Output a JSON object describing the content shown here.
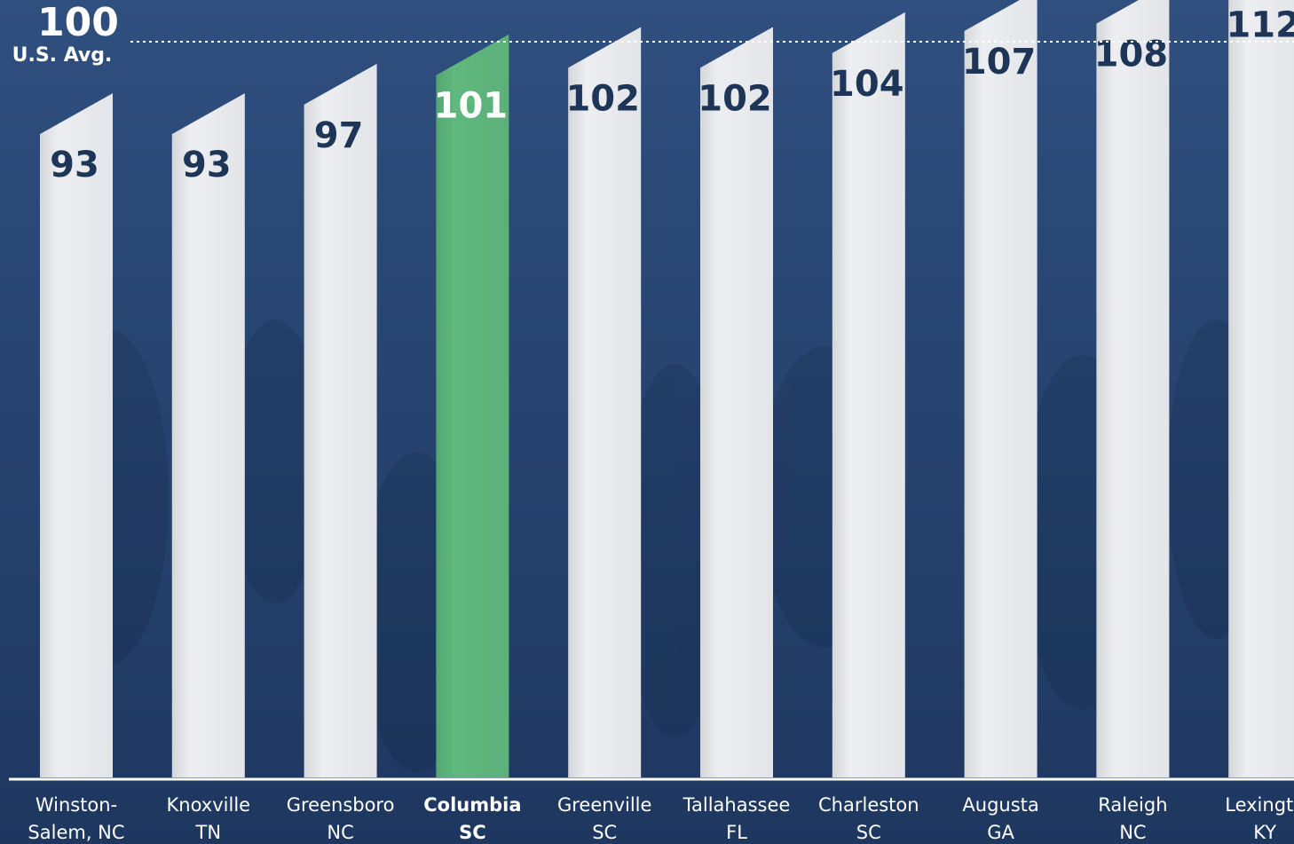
{
  "chart_data": {
    "type": "bar",
    "categories": [
      [
        "Winston-",
        "Salem, NC"
      ],
      [
        "Knoxville",
        "TN"
      ],
      [
        "Greensboro",
        "NC"
      ],
      [
        "Columbia",
        "SC"
      ],
      [
        "Greenville",
        "SC"
      ],
      [
        "Tallahassee",
        "FL"
      ],
      [
        "Charleston",
        "SC"
      ],
      [
        "Augusta",
        "GA"
      ],
      [
        "Raleigh",
        "NC"
      ],
      [
        "Lexingto",
        "KY"
      ]
    ],
    "values": [
      93,
      93,
      97,
      101,
      102,
      102,
      104,
      107,
      108,
      112
    ],
    "highlight_index": 3,
    "reference_line": {
      "value": 100,
      "value_label": "100",
      "label": "U.S. Avg."
    },
    "ylim": [
      0,
      112
    ],
    "grid": false,
    "legend": "none",
    "title": "",
    "xlabel": "",
    "ylabel": ""
  },
  "colors": {
    "background_top": "#2f4f7f",
    "background_bottom": "#1e375f",
    "bar": "#eceef1",
    "bar_highlight": "#5fb87e",
    "value_text": "#1d3557",
    "value_text_highlight": "#ffffff",
    "reference_line": "#ffffff",
    "axis": "#ffffff"
  }
}
